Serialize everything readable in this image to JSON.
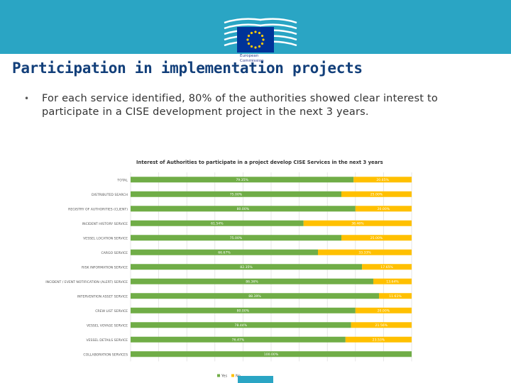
{
  "slide": {
    "title": "Participation in implementation projects",
    "bullet_marker": "•",
    "bullet_text": "For each service identified, 80% of the authorities showed clear interest to participate in a CISE development project in the next 3 years.",
    "logo_caption_line1": "European",
    "logo_caption_line2": "Commission",
    "colors": {
      "banner": "#2aa5c4",
      "title": "#123f7a",
      "yes": "#70ad47",
      "no": "#ffc000",
      "eu_blue": "#003399",
      "eu_stars": "#ffcc00"
    }
  },
  "chart_data": {
    "type": "bar",
    "orientation": "horizontal-stacked-100",
    "title": "Interest of Authorities to participate in a project develop CISE Services in the next 3 years",
    "xlim": [
      0,
      100
    ],
    "categories": [
      "TOTAL",
      "DISTRIBUTED SEARCH",
      "REGISTRY OF AUTHORITIES (CLIENT)",
      "INCIDENT HISTORY SERVICE",
      "VESSEL LOCATION SERVICE",
      "CARGO SERVICE",
      "RISK INFORMATION SERVICE",
      "INCIDENT / EVENT NOTIFICATION (ALERT) SERVICE",
      "INTERVENTION ASSET SERVICE",
      "CREW LIST SERVICE",
      "VESSEL VOYAGE SERVICE",
      "VESSEL DETAILS SERVICE",
      "COLLABORATION SERVICES"
    ],
    "series": [
      {
        "name": "Yes",
        "values": [
          79.35,
          75.0,
          80.0,
          61.54,
          75.0,
          66.67,
          82.35,
          86.36,
          88.39,
          80.0,
          78.44,
          76.47,
          100.0
        ],
        "labels": [
          "79.35%",
          "75.00%",
          "80.00%",
          "61.54%",
          "75.00%",
          "66.67%",
          "82.35%",
          "86.36%",
          "88.39%",
          "80.00%",
          "78.44%",
          "76.47%",
          "100.00%"
        ]
      },
      {
        "name": "No",
        "values": [
          20.65,
          25.0,
          20.0,
          38.46,
          25.0,
          33.33,
          17.65,
          13.64,
          11.61,
          20.0,
          21.56,
          23.53,
          0.0
        ],
        "labels": [
          "20.65%",
          "25.00%",
          "20.00%",
          "38.46%",
          "25.00%",
          "33.33%",
          "17.65%",
          "13.64%",
          "11.61%",
          "20.00%",
          "21.56%",
          "23.53%",
          ""
        ]
      }
    ],
    "legend": [
      "Yes",
      "No"
    ],
    "legend_position": "bottom",
    "grid": true
  }
}
